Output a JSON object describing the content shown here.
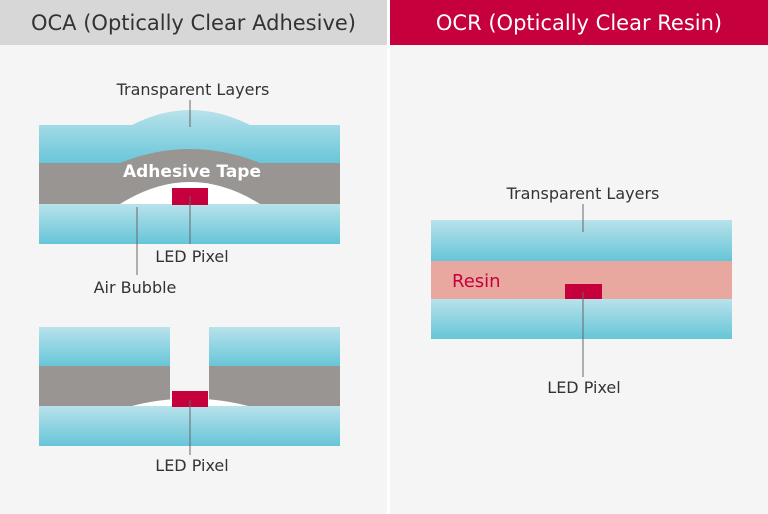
{
  "headers": {
    "oca": "OCA (Optically Clear Adhesive)",
    "ocr": "OCR (Optically Clear Resin)"
  },
  "oca_top": {
    "transparent_layers": "Transparent Layers",
    "adhesive_tape": "Adhesive Tape",
    "led_pixel": "LED Pixel",
    "air_bubble": "Air Bubble"
  },
  "oca_bottom": {
    "led_pixel": "LED Pixel"
  },
  "ocr": {
    "transparent_layers": "Transparent Layers",
    "resin": "Resin",
    "led_pixel": "LED Pixel"
  },
  "colors": {
    "glass_top": "#b5e0ea",
    "glass_bottom": "#6cc7d9",
    "adhesive": "#989593",
    "resin": "#e8a8a0",
    "led": "#c5003c",
    "ocr_header": "#c5003c",
    "oca_header": "#d7d7d7"
  }
}
